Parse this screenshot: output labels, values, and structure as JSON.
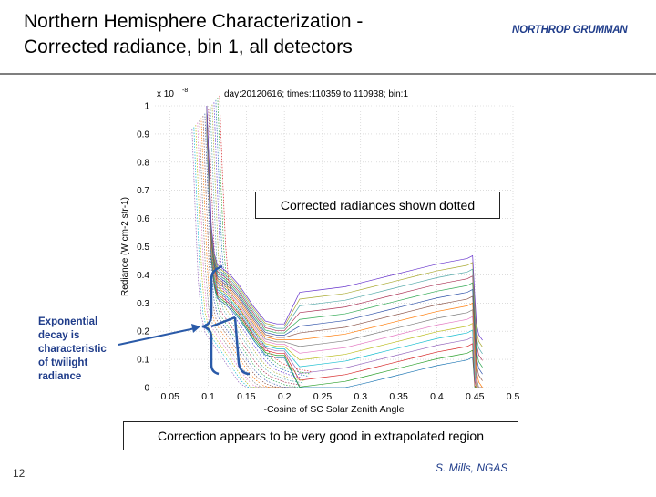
{
  "slide": {
    "title_line1": "Northern Hemisphere Characterization -",
    "title_line2": "Corrected radiance, bin 1, all detectors",
    "logo_text": "NORTHROP GRUMMAN",
    "slide_number": "12",
    "credit": "S. Mills, NGAS",
    "annotation_dotted": "Corrected radiances shown dotted",
    "annotation_correction": "Correction appears to be very good in extrapolated region",
    "callout_text": "Exponential decay is characteristic of twilight radiance",
    "colors": {
      "logo": "#1f3c8a",
      "callout": "#1f3c8a",
      "brace": "#2a5aa8"
    }
  },
  "chart_data": {
    "type": "line",
    "title": "day:20120616; times:110359 to 110938; bin:1",
    "xlabel": "-Cosine of SC Solar Zenith Angle",
    "ylabel": "Rediance (W cm-2 str-1)",
    "y_scale_label": "x 10",
    "y_scale_exponent": "-8",
    "xlim": [
      0.03,
      0.5
    ],
    "ylim": [
      0,
      1.0
    ],
    "x_ticks": [
      "0.05",
      "0.1",
      "0.15",
      "0.2",
      "0.25",
      "0.3",
      "0.35",
      "0.4",
      "0.45",
      "0.5"
    ],
    "y_ticks": [
      "0",
      "0.1",
      "0.2",
      "0.3",
      "0.4",
      "0.5",
      "0.6",
      "0.7",
      "0.8",
      "0.9",
      "1"
    ],
    "grid": true,
    "series_count": 16,
    "series_template": {
      "x": [
        0.098,
        0.101,
        0.104,
        0.108,
        0.112,
        0.117,
        0.122,
        0.13,
        0.14,
        0.15,
        0.16,
        0.175,
        0.19,
        0.2,
        0.22,
        0.25,
        0.28,
        0.31,
        0.34,
        0.37,
        0.4,
        0.42,
        0.44,
        0.447,
        0.45,
        0.452,
        0.455,
        0.46
      ],
      "solid": [
        0.98,
        0.75,
        0.52,
        0.42,
        0.38,
        0.37,
        0.36,
        0.34,
        0.31,
        0.27,
        0.23,
        0.18,
        0.17,
        0.17,
        0.17,
        0.18,
        0.19,
        0.21,
        0.23,
        0.25,
        0.27,
        0.28,
        0.29,
        0.3,
        0.15,
        0.06,
        0.02,
        0.0
      ],
      "dotted_x": [
        0.098,
        0.102,
        0.106,
        0.11,
        0.115,
        0.12,
        0.13,
        0.14,
        0.15,
        0.16,
        0.17,
        0.18,
        0.19,
        0.2,
        0.21,
        0.22
      ],
      "dotted": [
        0.98,
        0.7,
        0.45,
        0.32,
        0.26,
        0.24,
        0.2,
        0.16,
        0.12,
        0.08,
        0.05,
        0.03,
        0.02,
        0.01,
        0.005,
        0.0
      ]
    }
  }
}
